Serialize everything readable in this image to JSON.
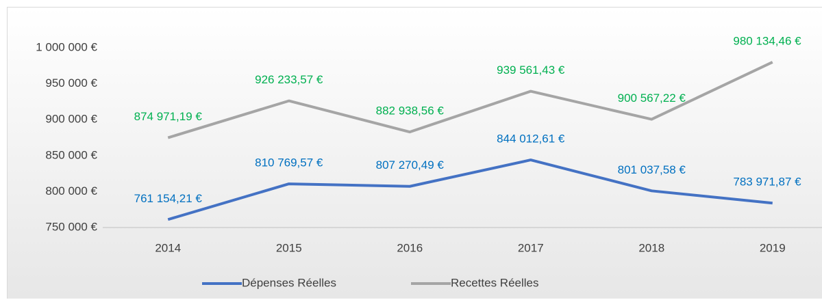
{
  "chart_data": {
    "type": "line",
    "categories": [
      "2014",
      "2015",
      "2016",
      "2017",
      "2018",
      "2019"
    ],
    "series": [
      {
        "name": "Dépenses Réelles",
        "color": "#4472c4",
        "label_color": "#0070c0",
        "values": [
          761154.21,
          810769.57,
          807270.49,
          844012.61,
          801037.58,
          783971.87
        ],
        "value_labels": [
          "761 154,21 €",
          "810 769,57 €",
          "807 270,49 €",
          "844 012,61 €",
          "801 037,58 €",
          "783 971,87 €"
        ]
      },
      {
        "name": "Recettes Réelles",
        "color": "#a5a5a5",
        "label_color": "#00b050",
        "values": [
          874971.19,
          926233.57,
          882938.56,
          939561.43,
          900567.22,
          980134.46
        ],
        "value_labels": [
          "874 971,19 €",
          "926 233,57 €",
          "882 938,56 €",
          "939 561,43 €",
          "900 567,22 €",
          "980 134,46 €"
        ]
      }
    ],
    "ylim": [
      750000,
      1000000
    ],
    "yticks": [
      {
        "value": 750000,
        "label": "750 000 €"
      },
      {
        "value": 800000,
        "label": "800 000 €"
      },
      {
        "value": 850000,
        "label": "850 000 €"
      },
      {
        "value": 900000,
        "label": "900 000 €"
      },
      {
        "value": 950000,
        "label": "950 000 €"
      },
      {
        "value": 1000000,
        "label": "1 000 000 €"
      }
    ],
    "grid": false,
    "legend": "bottom"
  }
}
